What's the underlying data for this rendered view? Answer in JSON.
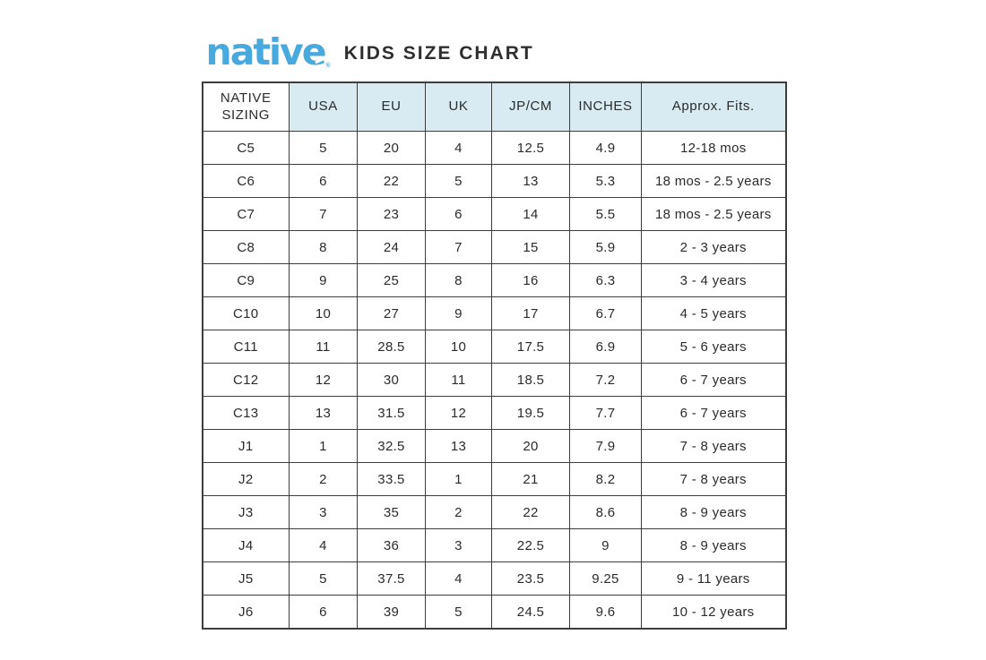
{
  "page": {
    "background_color": "#ffffff"
  },
  "brand": {
    "logo_text": "native",
    "logo_mark": "®",
    "logo_color": "#47a9dd",
    "title": "KIDS SIZE CHART",
    "title_color": "#2e2e2e"
  },
  "table_style": {
    "header_background": "#d8ebf2",
    "first_header_background": "#ffffff",
    "border_color": "#3d3d3d",
    "text_color": "#2b2b2b"
  },
  "chart_data": {
    "type": "table",
    "title": "native KIDS SIZE CHART",
    "columns": [
      "NATIVE\nSIZING",
      "USA",
      "EU",
      "UK",
      "JP/CM",
      "INCHES",
      "Approx. Fits."
    ],
    "rows": [
      [
        "C5",
        "5",
        "20",
        "4",
        "12.5",
        "4.9",
        "12-18 mos"
      ],
      [
        "C6",
        "6",
        "22",
        "5",
        "13",
        "5.3",
        "18 mos - 2.5 years"
      ],
      [
        "C7",
        "7",
        "23",
        "6",
        "14",
        "5.5",
        "18 mos - 2.5 years"
      ],
      [
        "C8",
        "8",
        "24",
        "7",
        "15",
        "5.9",
        "2 - 3 years"
      ],
      [
        "C9",
        "9",
        "25",
        "8",
        "16",
        "6.3",
        "3 - 4 years"
      ],
      [
        "C10",
        "10",
        "27",
        "9",
        "17",
        "6.7",
        "4 - 5 years"
      ],
      [
        "C11",
        "11",
        "28.5",
        "10",
        "17.5",
        "6.9",
        "5 - 6 years"
      ],
      [
        "C12",
        "12",
        "30",
        "11",
        "18.5",
        "7.2",
        "6 - 7 years"
      ],
      [
        "C13",
        "13",
        "31.5",
        "12",
        "19.5",
        "7.7",
        "6 - 7 years"
      ],
      [
        "J1",
        "1",
        "32.5",
        "13",
        "20",
        "7.9",
        "7 - 8 years"
      ],
      [
        "J2",
        "2",
        "33.5",
        "1",
        "21",
        "8.2",
        "7 - 8 years"
      ],
      [
        "J3",
        "3",
        "35",
        "2",
        "22",
        "8.6",
        "8 - 9 years"
      ],
      [
        "J4",
        "4",
        "36",
        "3",
        "22.5",
        "9",
        "8 - 9 years"
      ],
      [
        "J5",
        "5",
        "37.5",
        "4",
        "23.5",
        "9.25",
        "9 - 11 years"
      ],
      [
        "J6",
        "6",
        "39",
        "5",
        "24.5",
        "9.6",
        "10 - 12 years"
      ]
    ]
  }
}
